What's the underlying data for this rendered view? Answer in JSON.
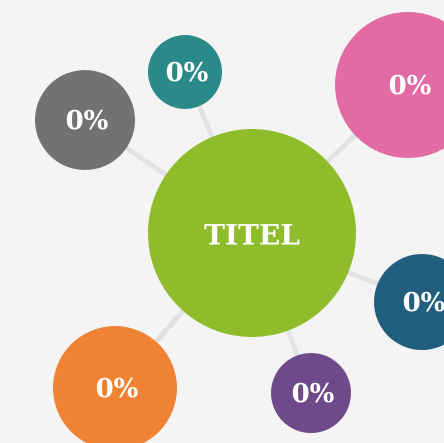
{
  "center": {
    "label": "TITEL"
  },
  "nodes": [
    {
      "label": "0%"
    },
    {
      "label": "0%"
    },
    {
      "label": "0%"
    },
    {
      "label": "0%"
    },
    {
      "label": "0%"
    },
    {
      "label": "0%"
    }
  ]
}
